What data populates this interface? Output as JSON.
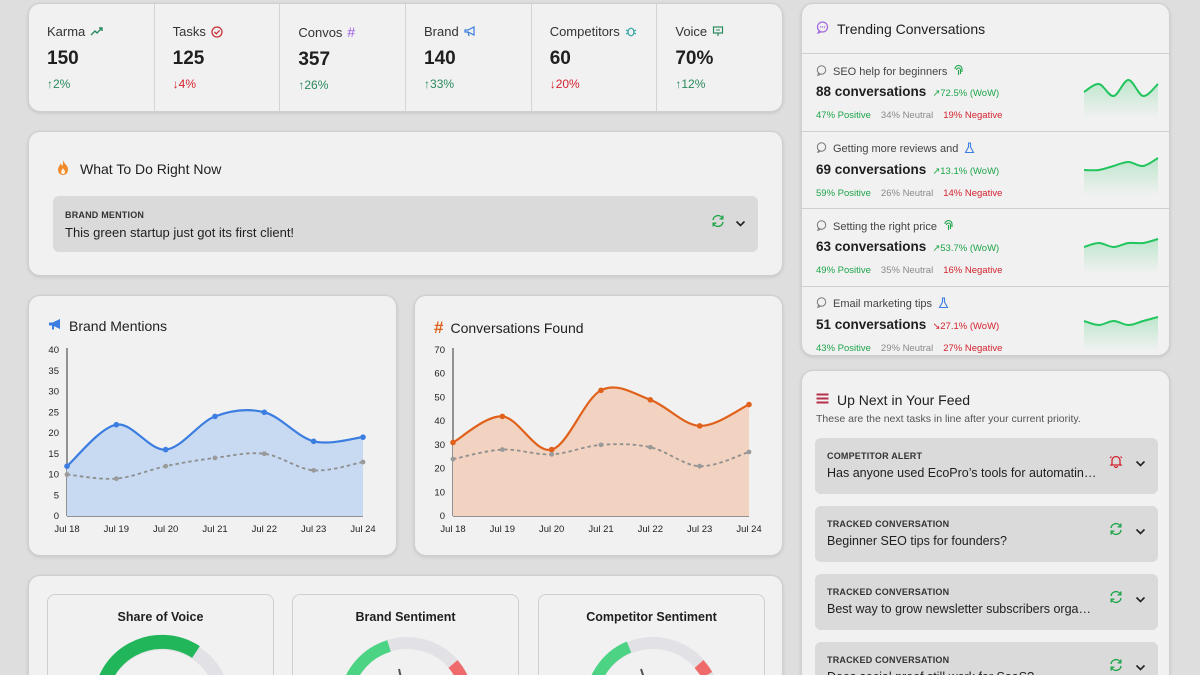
{
  "stats": [
    {
      "label": "Karma",
      "value": "150",
      "change": "↑2%",
      "dir": "up",
      "icon": "trending-up-icon"
    },
    {
      "label": "Tasks",
      "value": "125",
      "change": "↓4%",
      "dir": "down",
      "icon": "check-circle-icon"
    },
    {
      "label": "Convos",
      "value": "357",
      "change": "↑26%",
      "dir": "up",
      "icon": "hash-icon"
    },
    {
      "label": "Brand",
      "value": "140",
      "change": "↑33%",
      "dir": "up",
      "icon": "megaphone-icon"
    },
    {
      "label": "Competitors",
      "value": "60",
      "change": "↓20%",
      "dir": "down",
      "icon": "bug-icon"
    },
    {
      "label": "Voice",
      "value": "70%",
      "change": "↑12%",
      "dir": "up",
      "icon": "presentation-icon"
    }
  ],
  "todo": {
    "title": "What To Do Right Now",
    "tag": "BRAND MENTION",
    "text": "This green startup just got its first client!"
  },
  "charts": {
    "brand": {
      "title": "Brand Mentions",
      "type": "area",
      "color": "#3b7de0",
      "fill": "#c8d9f2",
      "categories": [
        "Jul 18",
        "Jul 19",
        "Jul 20",
        "Jul 21",
        "Jul 22",
        "Jul 23",
        "Jul 24"
      ],
      "series": [
        {
          "values": [
            12,
            22,
            16,
            24,
            25,
            18,
            19
          ]
        },
        {
          "values": [
            10,
            9,
            12,
            14,
            15,
            11,
            13
          ]
        }
      ],
      "yticks": [
        "0",
        "5",
        "10",
        "15",
        "20",
        "25",
        "30",
        "35",
        "40"
      ],
      "ylim": [
        0,
        40
      ]
    },
    "convos": {
      "title": "Conversations Found",
      "type": "area",
      "color": "#e0611b",
      "fill": "#f2d2c0",
      "categories": [
        "Jul 18",
        "Jul 19",
        "Jul 20",
        "Jul 21",
        "Jul 22",
        "Jul 23",
        "Jul 24"
      ],
      "series": [
        {
          "values": [
            31,
            42,
            28,
            53,
            49,
            38,
            47
          ]
        },
        {
          "values": [
            24,
            28,
            26,
            30,
            29,
            21,
            27
          ]
        }
      ],
      "yticks": [
        "0",
        "10",
        "20",
        "30",
        "40",
        "50",
        "60",
        "70"
      ],
      "ylim": [
        0,
        70
      ]
    }
  },
  "gauges": [
    {
      "title": "Share of Voice"
    },
    {
      "title": "Brand Sentiment"
    },
    {
      "title": "Competitor Sentiment"
    }
  ],
  "trending": {
    "title": "Trending Conversations",
    "items": [
      {
        "topic": "SEO help for beginners",
        "count": "88 conversations",
        "wow": "↗72.5% (WoW)",
        "dir": "up",
        "pos": "47% Positive",
        "neu": "34% Neutral",
        "neg": "19% Negative",
        "icon": "fingerprint-icon",
        "spark": [
          5,
          3,
          6,
          2,
          6,
          3
        ]
      },
      {
        "topic": "Getting more reviews and",
        "count": "69 conversations",
        "wow": "↗13.1% (WoW)",
        "dir": "up",
        "pos": "59% Positive",
        "neu": "26% Neutral",
        "neg": "14% Negative",
        "icon": "flask-icon",
        "spark": [
          5,
          5,
          4,
          3,
          4,
          2
        ]
      },
      {
        "topic": "Setting the right price",
        "count": "63 conversations",
        "wow": "↗53.7% (WoW)",
        "dir": "up",
        "pos": "49% Positive",
        "neu": "35% Neutral",
        "neg": "16% Negative",
        "icon": "fingerprint-icon",
        "spark": [
          5,
          4,
          5,
          4,
          4,
          3
        ]
      },
      {
        "topic": "Email marketing tips",
        "count": "51 conversations",
        "wow": "↘27.1% (WoW)",
        "dir": "down",
        "pos": "43% Positive",
        "neu": "29% Neutral",
        "neg": "27% Negative",
        "icon": "flask-icon",
        "spark": [
          4,
          5,
          4,
          5,
          4,
          3
        ]
      }
    ]
  },
  "upnext": {
    "title": "Up Next in Your Feed",
    "subtitle": "These are the next tasks in line after your current priority.",
    "items": [
      {
        "tag": "COMPETITOR ALERT",
        "text": "Has anyone used EcoPro’s tools for automating ...",
        "icon": "bell-icon"
      },
      {
        "tag": "TRACKED CONVERSATION",
        "text": "Beginner SEO tips for founders?",
        "icon": "refresh-icon"
      },
      {
        "tag": "TRACKED CONVERSATION",
        "text": "Best way to grow newsletter subscribers organic...",
        "icon": "refresh-icon"
      },
      {
        "tag": "TRACKED CONVERSATION",
        "text": "Does social proof still work for SaaS?",
        "icon": "refresh-icon"
      }
    ]
  }
}
